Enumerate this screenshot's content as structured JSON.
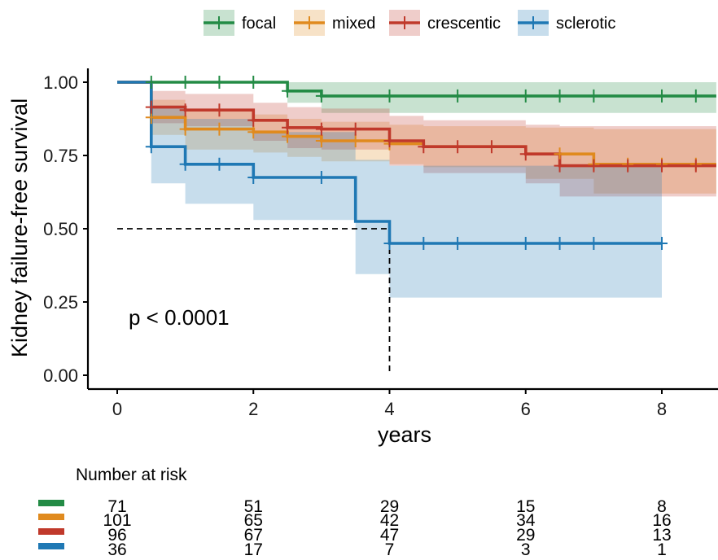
{
  "chart_data": {
    "type": "line",
    "subtype": "kaplan-meier",
    "xlabel": "years",
    "ylabel": "Kidney failure-free survival",
    "xlim": [
      -0.4,
      8.8
    ],
    "ylim": [
      0,
      1
    ],
    "xticks": [
      0,
      2,
      4,
      6,
      8
    ],
    "yticks": [
      "0.00",
      "0.25",
      "0.50",
      "0.75",
      "1.00"
    ],
    "legend_position": "top",
    "annotation": "p < 0.0001",
    "median_line": {
      "y": 0.5,
      "x": 4
    },
    "series": [
      {
        "name": "focal",
        "color": "#238b45",
        "steps": [
          [
            0,
            1.0
          ],
          [
            2.5,
            0.97
          ],
          [
            3.0,
            0.953
          ],
          [
            8.8,
            0.953
          ]
        ],
        "ci": [
          [
            0,
            1.0,
            1.0
          ],
          [
            2.5,
            0.93,
            1.0
          ],
          [
            3.0,
            0.895,
            1.0
          ],
          [
            8.8,
            0.895,
            1.0
          ]
        ],
        "censors": [
          [
            0.5,
            1.0
          ],
          [
            1,
            1.0
          ],
          [
            1.5,
            1.0
          ],
          [
            2,
            1.0
          ],
          [
            2.5,
            0.97
          ],
          [
            3,
            0.953
          ],
          [
            4,
            0.953
          ],
          [
            5,
            0.953
          ],
          [
            6,
            0.953
          ],
          [
            6.5,
            0.953
          ],
          [
            7,
            0.953
          ],
          [
            8,
            0.953
          ],
          [
            8.5,
            0.953
          ]
        ]
      },
      {
        "name": "mixed",
        "color": "#e08a1e",
        "steps": [
          [
            0,
            1.0
          ],
          [
            0.5,
            0.88
          ],
          [
            1.0,
            0.84
          ],
          [
            2.0,
            0.83
          ],
          [
            2.5,
            0.815
          ],
          [
            3.0,
            0.8
          ],
          [
            4.0,
            0.79
          ],
          [
            4.5,
            0.78
          ],
          [
            6.0,
            0.755
          ],
          [
            7.0,
            0.72
          ],
          [
            8.8,
            0.72
          ]
        ],
        "ci": [
          [
            0,
            1.0,
            1.0
          ],
          [
            0.5,
            0.82,
            0.94
          ],
          [
            1.0,
            0.77,
            0.9
          ],
          [
            2.0,
            0.76,
            0.89
          ],
          [
            2.5,
            0.745,
            0.875
          ],
          [
            3.0,
            0.73,
            0.865
          ],
          [
            4.0,
            0.72,
            0.855
          ],
          [
            4.5,
            0.71,
            0.85
          ],
          [
            6.0,
            0.67,
            0.845
          ],
          [
            7.0,
            0.62,
            0.84
          ],
          [
            8.8,
            0.61,
            0.84
          ]
        ],
        "censors": [
          [
            0.5,
            0.88
          ],
          [
            1,
            0.84
          ],
          [
            1.5,
            0.84
          ],
          [
            2,
            0.83
          ],
          [
            2.5,
            0.815
          ],
          [
            3,
            0.8
          ],
          [
            3.5,
            0.8
          ],
          [
            4,
            0.79
          ],
          [
            6.5,
            0.755
          ],
          [
            7,
            0.72
          ],
          [
            7.5,
            0.72
          ],
          [
            8,
            0.72
          ],
          [
            8.5,
            0.72
          ]
        ]
      },
      {
        "name": "crescentic",
        "color": "#c0392b",
        "steps": [
          [
            0,
            1.0
          ],
          [
            0.5,
            0.915
          ],
          [
            1.0,
            0.905
          ],
          [
            2.0,
            0.87
          ],
          [
            2.5,
            0.845
          ],
          [
            3.0,
            0.84
          ],
          [
            4.0,
            0.8
          ],
          [
            4.5,
            0.78
          ],
          [
            6.0,
            0.755
          ],
          [
            6.5,
            0.715
          ],
          [
            8.8,
            0.715
          ]
        ],
        "ci": [
          [
            0,
            1.0,
            1.0
          ],
          [
            0.5,
            0.86,
            0.97
          ],
          [
            1.0,
            0.85,
            0.96
          ],
          [
            2.0,
            0.8,
            0.93
          ],
          [
            2.5,
            0.775,
            0.915
          ],
          [
            3.0,
            0.77,
            0.91
          ],
          [
            4.0,
            0.715,
            0.885
          ],
          [
            4.5,
            0.69,
            0.87
          ],
          [
            6.0,
            0.655,
            0.855
          ],
          [
            6.5,
            0.61,
            0.85
          ],
          [
            8.8,
            0.6,
            0.85
          ]
        ],
        "censors": [
          [
            0.5,
            0.915
          ],
          [
            1,
            0.905
          ],
          [
            1.5,
            0.905
          ],
          [
            2,
            0.87
          ],
          [
            2.5,
            0.845
          ],
          [
            3,
            0.84
          ],
          [
            3.5,
            0.84
          ],
          [
            4,
            0.8
          ],
          [
            4.5,
            0.78
          ],
          [
            5,
            0.78
          ],
          [
            5.5,
            0.78
          ],
          [
            6,
            0.755
          ],
          [
            6.5,
            0.715
          ],
          [
            7,
            0.715
          ],
          [
            7.5,
            0.715
          ],
          [
            8,
            0.715
          ],
          [
            8.5,
            0.715
          ]
        ]
      },
      {
        "name": "sclerotic",
        "color": "#1f78b4",
        "steps": [
          [
            0,
            1.0
          ],
          [
            0.5,
            0.78
          ],
          [
            1.0,
            0.72
          ],
          [
            2.0,
            0.675
          ],
          [
            3.5,
            0.525
          ],
          [
            4.0,
            0.45
          ],
          [
            8.0,
            0.45
          ]
        ],
        "ci": [
          [
            0,
            1.0,
            1.0
          ],
          [
            0.5,
            0.655,
            0.92
          ],
          [
            1.0,
            0.585,
            0.875
          ],
          [
            2.0,
            0.53,
            0.83
          ],
          [
            3.5,
            0.345,
            0.735
          ],
          [
            4.0,
            0.265,
            0.715
          ],
          [
            8.0,
            0.265,
            0.715
          ]
        ],
        "censors": [
          [
            0.5,
            0.78
          ],
          [
            1,
            0.72
          ],
          [
            1.5,
            0.72
          ],
          [
            2,
            0.675
          ],
          [
            3,
            0.675
          ],
          [
            4,
            0.45
          ],
          [
            4.5,
            0.45
          ],
          [
            5,
            0.45
          ],
          [
            6,
            0.45
          ],
          [
            6.5,
            0.45
          ],
          [
            7,
            0.45
          ],
          [
            8,
            0.45
          ]
        ]
      }
    ]
  },
  "risk_table": {
    "title": "Number at risk",
    "rows": [
      {
        "strata": "focal",
        "color": "#238b45",
        "values": [
          "71",
          "51",
          "29",
          "15",
          "8"
        ]
      },
      {
        "strata": "mixed",
        "color": "#e08a1e",
        "values": [
          "101",
          "65",
          "42",
          "34",
          "16"
        ]
      },
      {
        "strata": "crescentic",
        "color": "#c0392b",
        "values": [
          "96",
          "67",
          "47",
          "29",
          "13"
        ]
      },
      {
        "strata": "sclerotic",
        "color": "#1f78b4",
        "values": [
          "36",
          "17",
          "7",
          "3",
          "1"
        ]
      }
    ]
  }
}
